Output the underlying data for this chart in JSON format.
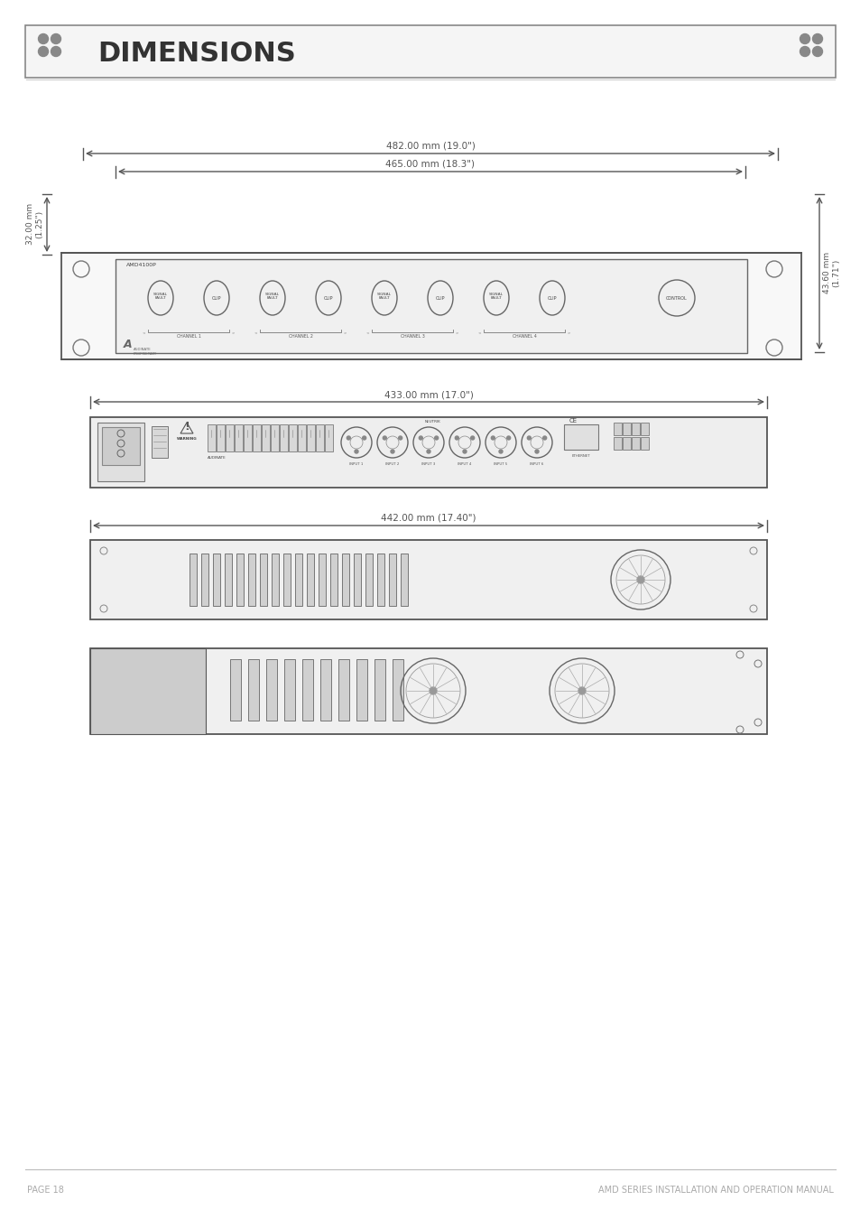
{
  "title": "DIMENSIONS",
  "page_text_left": "PAGE 18",
  "page_text_right": "AMD SERIES INSTALLATION AND OPERATION MANUAL",
  "bg_color": "#ffffff",
  "line_color": "#555555",
  "light_gray": "#aaaaaa",
  "dark_gray": "#444444",
  "header_bg": "#f0f0f0",
  "view1": {
    "dim1_text": "482.00 mm (19.0\")",
    "dim2_text": "465.00 mm (18.3\")",
    "dim_left_text": "32.00 mm\n(1.25\")",
    "dim_right_text": "43.60 mm\n(1.71\")"
  },
  "view2": {
    "dim_text": "433.00 mm (17.0\")"
  },
  "view3": {
    "dim_text": "442.00 mm (17.40\")"
  }
}
